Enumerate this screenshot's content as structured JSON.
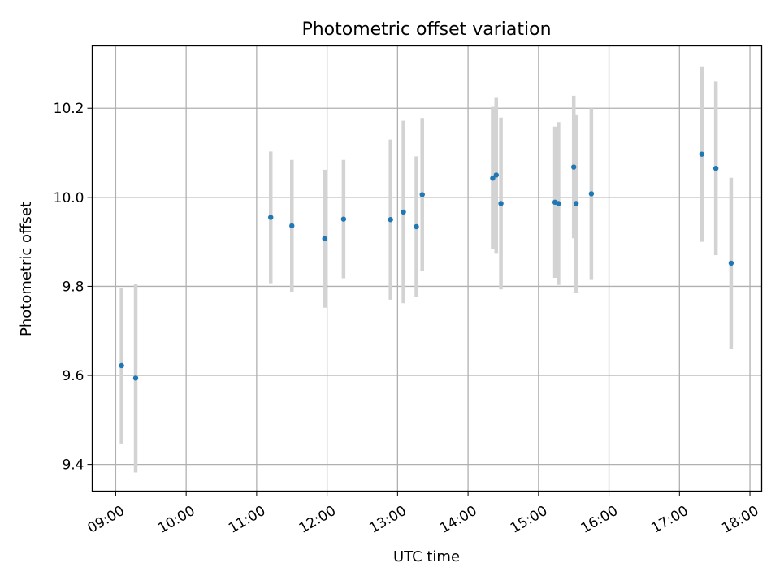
{
  "chart_data": {
    "type": "scatter",
    "title": "Photometric offset variation",
    "xlabel": "UTC time",
    "ylabel": "Photometric offset",
    "grid": true,
    "xlim": [
      "08:40",
      "18:10"
    ],
    "ylim": [
      9.34,
      10.34
    ],
    "x_ticks": [
      "09:00",
      "10:00",
      "11:00",
      "12:00",
      "13:00",
      "14:00",
      "15:00",
      "16:00",
      "17:00",
      "18:00"
    ],
    "y_ticks": [
      "9.4",
      "9.6",
      "9.8",
      "10.0",
      "10.2"
    ],
    "colors": {
      "marker": "#1f77b4",
      "errorbar": "#d3d3d3"
    },
    "points": [
      {
        "time": "09:05",
        "y": 9.622,
        "err": 0.175
      },
      {
        "time": "09:17",
        "y": 9.594,
        "err": 0.212
      },
      {
        "time": "11:12",
        "y": 9.955,
        "err": 0.148
      },
      {
        "time": "11:30",
        "y": 9.936,
        "err": 0.148
      },
      {
        "time": "11:58",
        "y": 9.907,
        "err": 0.155
      },
      {
        "time": "12:14",
        "y": 9.951,
        "err": 0.133
      },
      {
        "time": "12:54",
        "y": 9.95,
        "err": 0.18
      },
      {
        "time": "13:05",
        "y": 9.967,
        "err": 0.205
      },
      {
        "time": "13:16",
        "y": 9.934,
        "err": 0.158
      },
      {
        "time": "13:21",
        "y": 10.006,
        "err": 0.172
      },
      {
        "time": "14:21",
        "y": 10.043,
        "err": 0.16
      },
      {
        "time": "14:24",
        "y": 10.05,
        "err": 0.175
      },
      {
        "time": "14:28",
        "y": 9.986,
        "err": 0.193
      },
      {
        "time": "15:14",
        "y": 9.989,
        "err": 0.17
      },
      {
        "time": "15:17",
        "y": 9.986,
        "err": 0.183
      },
      {
        "time": "15:30",
        "y": 10.068,
        "err": 0.16
      },
      {
        "time": "15:32",
        "y": 9.986,
        "err": 0.2
      },
      {
        "time": "15:45",
        "y": 10.008,
        "err": 0.192
      },
      {
        "time": "17:19",
        "y": 10.097,
        "err": 0.197
      },
      {
        "time": "17:31",
        "y": 10.065,
        "err": 0.195
      },
      {
        "time": "17:44",
        "y": 9.852,
        "err": 0.192
      }
    ]
  }
}
